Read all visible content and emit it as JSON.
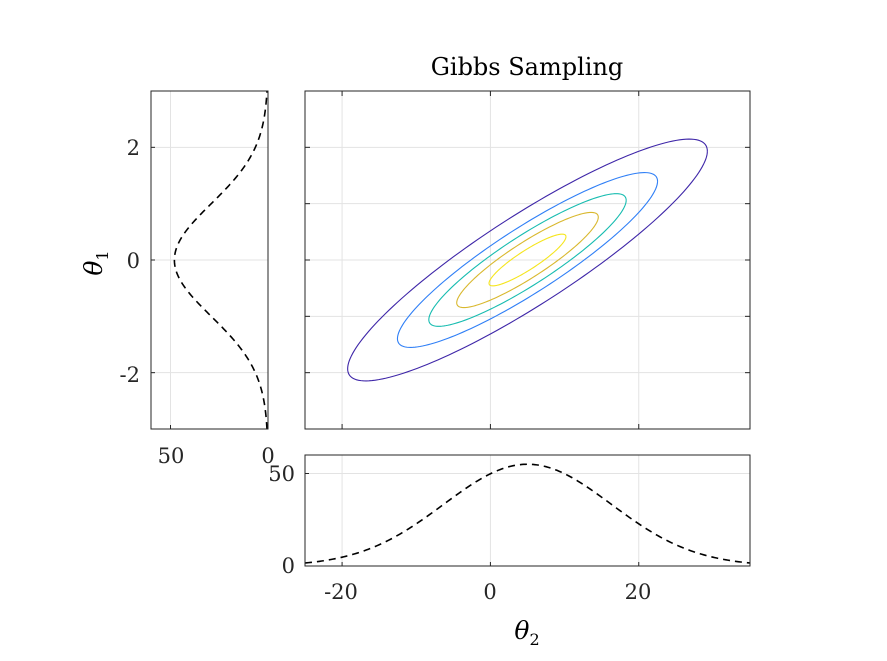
{
  "chart_data": [
    {
      "id": "main",
      "type": "contour",
      "title": "Gibbs Sampling",
      "xlim": [
        -25,
        35
      ],
      "ylim": [
        -3,
        3
      ],
      "grid": true,
      "xticks": [
        -20,
        0,
        20
      ],
      "yticks": [
        -2,
        -1,
        0,
        1,
        2
      ],
      "distribution": {
        "mean_x": 5,
        "mean_y": 0,
        "sd_x": 11.3,
        "sd_y": 1.0,
        "correlation": 0.9
      },
      "levels": [
        {
          "value": 0.1,
          "color": "#3e26a8"
        },
        {
          "value": 0.3,
          "color": "#2f7ff6"
        },
        {
          "value": 0.5,
          "color": "#17bcb0"
        },
        {
          "value": 0.7,
          "color": "#d9b82e"
        },
        {
          "value": 0.9,
          "color": "#f5e51e"
        }
      ]
    },
    {
      "id": "bottom_marginal",
      "type": "line",
      "xlim": [
        -25,
        35
      ],
      "ylim": [
        0,
        60
      ],
      "xticks": [
        -20,
        0,
        20
      ],
      "xtick_labels": [
        "-20",
        "0",
        "20"
      ],
      "yticks": [
        0,
        50
      ],
      "ytick_labels": [
        "0",
        "50"
      ],
      "xlabel_symbol": "θ",
      "xlabel_sub": "2",
      "grid": true,
      "series": [
        {
          "style": "dashed",
          "color": "#000000",
          "curve": {
            "type": "gaussian",
            "peak": 55,
            "mean": 5,
            "sd": 11.3
          }
        }
      ]
    },
    {
      "id": "left_marginal",
      "type": "line",
      "orientation": "horizontal-reversed",
      "xlim": [
        60,
        0
      ],
      "ylim": [
        -3,
        3
      ],
      "xticks": [
        50,
        0
      ],
      "xtick_labels": [
        "50",
        "0"
      ],
      "yticks": [
        -2,
        0,
        2
      ],
      "ytick_labels": [
        "-2",
        "0",
        "2"
      ],
      "ylabel_symbol": "θ",
      "ylabel_sub": "1",
      "grid": true,
      "series": [
        {
          "style": "dashed",
          "color": "#000000",
          "curve": {
            "type": "gaussian",
            "peak": 48,
            "mean": 0,
            "sd": 1.0
          }
        }
      ]
    }
  ]
}
